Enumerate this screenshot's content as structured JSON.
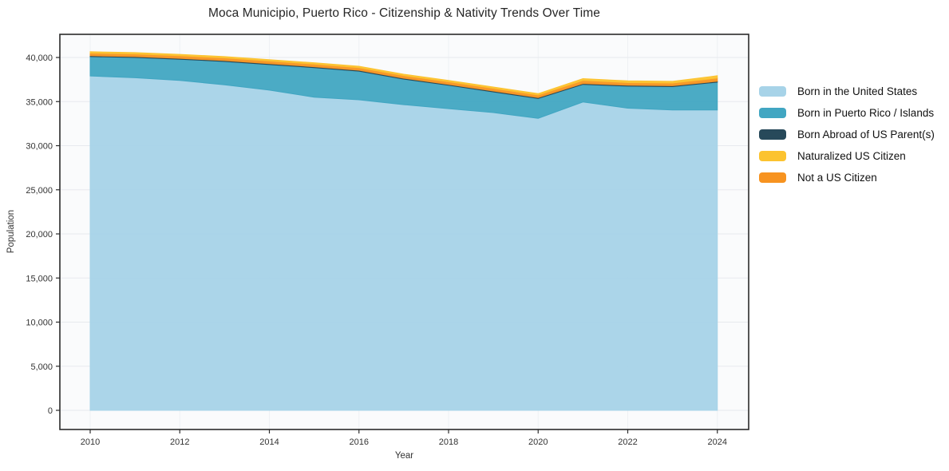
{
  "chart_data": {
    "type": "area",
    "stacked": true,
    "title": "Moca Municipio, Puerto Rico - Citizenship & Nativity Trends Over Time",
    "xlabel": "Year",
    "ylabel": "Population",
    "x": [
      2010,
      2011,
      2012,
      2013,
      2014,
      2015,
      2016,
      2017,
      2018,
      2019,
      2020,
      2021,
      2022,
      2023,
      2024
    ],
    "series": [
      {
        "name": "Born in the United States",
        "color": "#a7d3e8",
        "values": [
          37900,
          37700,
          37400,
          36900,
          36300,
          35500,
          35200,
          34650,
          34200,
          33750,
          33100,
          34950,
          34250,
          34050,
          34050
        ]
      },
      {
        "name": "Born in Puerto Rico / Islands",
        "color": "#41a6c2",
        "values": [
          2200,
          2300,
          2400,
          2650,
          2900,
          3350,
          3250,
          2900,
          2650,
          2350,
          2250,
          2000,
          2500,
          2650,
          3150
        ]
      },
      {
        "name": "Born Abroad of US Parent(s)",
        "color": "#27495a",
        "values": [
          100,
          100,
          100,
          100,
          100,
          100,
          100,
          100,
          100,
          100,
          100,
          100,
          100,
          100,
          100
        ]
      },
      {
        "name": "Naturalized US Citizen",
        "color": "#fcc32f",
        "values": [
          150,
          150,
          150,
          150,
          150,
          150,
          150,
          150,
          150,
          150,
          150,
          200,
          200,
          200,
          270
        ]
      },
      {
        "name": "Not a US Citizen",
        "color": "#f79320",
        "values": [
          300,
          300,
          300,
          300,
          300,
          300,
          300,
          300,
          300,
          300,
          300,
          350,
          300,
          300,
          360
        ]
      }
    ],
    "stack_order": [
      0,
      1,
      2,
      4,
      3
    ],
    "legend_position": "right",
    "grid": true,
    "x_ticks": [
      2010,
      2012,
      2014,
      2016,
      2018,
      2020,
      2022,
      2024
    ],
    "y_ticks": [
      0,
      5000,
      10000,
      15000,
      20000,
      25000,
      30000,
      35000,
      40000
    ],
    "y_tick_labels": [
      "0",
      "5,000",
      "10,000",
      "15,000",
      "20,000",
      "25,000",
      "30,000",
      "35,000",
      "40,000"
    ],
    "ylim": [
      -2200,
      42600
    ],
    "xlim": [
      2009.3,
      2024.7
    ],
    "axis_color": "#2b2b2b",
    "grid_color": "#e7eaee",
    "plot_bg": "#fafbfc"
  }
}
